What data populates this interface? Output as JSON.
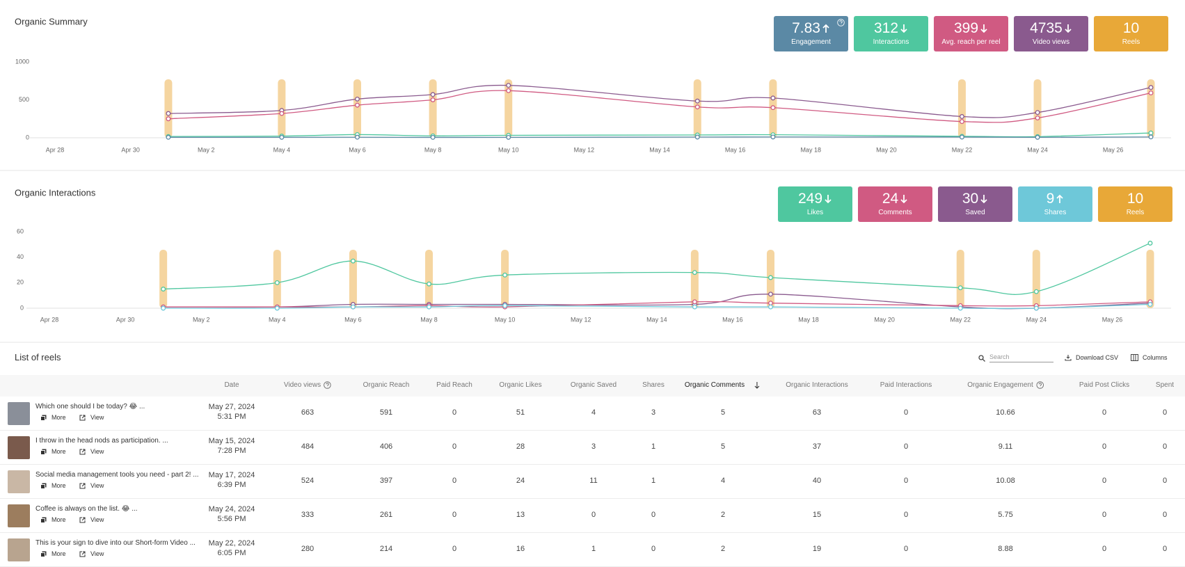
{
  "chart_data": [
    {
      "type": "line",
      "title": "Organic Summary",
      "kpis": [
        {
          "value": 7.83,
          "label": "Engagement",
          "trend": "up",
          "color": "#5b89a5",
          "help": true
        },
        {
          "value": 312,
          "label": "Interactions",
          "trend": "down",
          "color": "#4fc79f"
        },
        {
          "value": 399,
          "label": "Avg. reach per reel",
          "trend": "down",
          "color": "#d05a82"
        },
        {
          "value": 4735,
          "label": "Video views",
          "trend": "down",
          "color": "#8a5a8e"
        },
        {
          "value": 10,
          "label": "Reels",
          "color": "#e8a838"
        }
      ],
      "x": [
        "May 1",
        "May 4",
        "May 6",
        "May 8",
        "May 10",
        "May 15",
        "May 17",
        "May 22",
        "May 24",
        "May 27"
      ],
      "marker_color": "#f5d5a0",
      "series": [
        {
          "color": "#8a5a8e",
          "values": [
            320,
            360,
            510,
            570,
            691,
            484,
            524,
            280,
            333,
            663
          ]
        },
        {
          "color": "#d05a82",
          "values": [
            250,
            320,
            430,
            500,
            621,
            406,
            397,
            214,
            261,
            591
          ]
        },
        {
          "color": "#4fc79f",
          "values": [
            17,
            22,
            42,
            25,
            32,
            37,
            40,
            19,
            15,
            63
          ]
        },
        {
          "color": "#5b89a5",
          "values": [
            6.0,
            5.5,
            7.0,
            5.2,
            5.6,
            9.11,
            10.08,
            8.88,
            5.75,
            10.66
          ]
        }
      ],
      "xlim": [
        "Apr 28",
        "May 27"
      ],
      "xticks": [
        "Apr 28",
        "Apr 30",
        "May 2",
        "May 4",
        "May 6",
        "May 8",
        "May 10",
        "May 12",
        "May 14",
        "May 16",
        "May 18",
        "May 20",
        "May 22",
        "May 24",
        "May 26"
      ],
      "ylim": [
        0,
        1000
      ],
      "yticks": [
        0,
        500,
        1000
      ],
      "grid": false
    },
    {
      "type": "line",
      "title": "Organic Interactions",
      "kpis": [
        {
          "value": 249,
          "label": "Likes",
          "trend": "down",
          "color": "#4fc79f"
        },
        {
          "value": 24,
          "label": "Comments",
          "trend": "down",
          "color": "#d05a82"
        },
        {
          "value": 30,
          "label": "Saved",
          "trend": "down",
          "color": "#8a5a8e"
        },
        {
          "value": 9,
          "label": "Shares",
          "trend": "up",
          "color": "#6ec8d9"
        },
        {
          "value": 10,
          "label": "Reels",
          "color": "#e8a838"
        }
      ],
      "x": [
        "May 1",
        "May 4",
        "May 6",
        "May 8",
        "May 10",
        "May 15",
        "May 17",
        "May 22",
        "May 24",
        "May 27"
      ],
      "marker_color": "#f5d5a0",
      "series": [
        {
          "color": "#4fc79f",
          "values": [
            15,
            20,
            37,
            19,
            26,
            28,
            24,
            16,
            13,
            51
          ]
        },
        {
          "color": "#8a5a8e",
          "values": [
            1,
            1,
            3,
            3,
            3,
            3,
            11,
            1,
            0,
            4
          ]
        },
        {
          "color": "#d05a82",
          "values": [
            1,
            1,
            1,
            2,
            1,
            5,
            4,
            2,
            2,
            5
          ]
        },
        {
          "color": "#6ec8d9",
          "values": [
            0,
            0,
            1,
            1,
            2,
            1,
            1,
            0,
            0,
            3
          ]
        }
      ],
      "xlim": [
        "Apr 28",
        "May 27"
      ],
      "xticks": [
        "Apr 28",
        "Apr 30",
        "May 2",
        "May 4",
        "May 6",
        "May 8",
        "May 10",
        "May 12",
        "May 14",
        "May 16",
        "May 18",
        "May 20",
        "May 22",
        "May 24",
        "May 26"
      ],
      "ylim": [
        0,
        60
      ],
      "yticks": [
        0,
        20,
        40,
        60
      ],
      "grid": false
    }
  ],
  "reels_table": {
    "title": "List of reels",
    "search_placeholder": "Search",
    "download": "Download CSV",
    "columns_button": "Columns",
    "actions": [
      "More",
      "View"
    ],
    "columns": [
      {
        "label": "Date"
      },
      {
        "label": "Video views",
        "help": true
      },
      {
        "label": "Organic Reach"
      },
      {
        "label": "Paid Reach"
      },
      {
        "label": "Organic Likes"
      },
      {
        "label": "Organic Saved"
      },
      {
        "label": "Shares"
      },
      {
        "label": "Organic Comments",
        "sorted": true
      },
      {
        "label": "Organic Interactions"
      },
      {
        "label": "Paid Interactions"
      },
      {
        "label": "Organic Engagement",
        "help": true
      },
      {
        "label": "Paid Post Clicks"
      },
      {
        "label": "Spent"
      }
    ],
    "rows": [
      {
        "title": "Which one should I be today? 😂 ...",
        "date": "May 27, 2024",
        "time": "5:31 PM",
        "values": [
          663,
          591,
          0,
          51,
          4,
          3,
          5,
          63,
          0,
          10.66,
          0,
          0
        ]
      },
      {
        "title": "I throw in the head nods as participation. ...",
        "date": "May 15, 2024",
        "time": "7:28 PM",
        "values": [
          484,
          406,
          0,
          28,
          3,
          1,
          5,
          37,
          0,
          9.11,
          0,
          0
        ]
      },
      {
        "title": "Social media management tools you need - part 2! ...",
        "date": "May 17, 2024",
        "time": "6:39 PM",
        "values": [
          524,
          397,
          0,
          24,
          11,
          1,
          4,
          40,
          0,
          10.08,
          0,
          0
        ]
      },
      {
        "title": "Coffee is always on the list. 😂 ...",
        "date": "May 24, 2024",
        "time": "5:56 PM",
        "values": [
          333,
          261,
          0,
          13,
          0,
          0,
          2,
          15,
          0,
          5.75,
          0,
          0
        ]
      },
      {
        "title": "This is your sign to dive into our Short-form Video ...",
        "date": "May 22, 2024",
        "time": "6:05 PM",
        "values": [
          280,
          214,
          0,
          16,
          1,
          0,
          2,
          19,
          0,
          8.88,
          0,
          0
        ]
      }
    ]
  }
}
